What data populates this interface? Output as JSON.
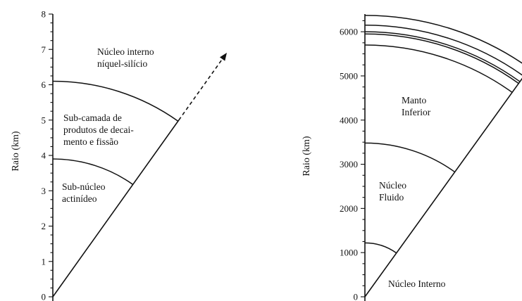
{
  "panels": [
    {
      "id": "left",
      "axis_title": "Raio (km)",
      "ticks": [
        0,
        1,
        2,
        3,
        4,
        5,
        6,
        7,
        8
      ],
      "ylim": [
        0,
        8
      ],
      "layer_boundaries": [
        3.9,
        6.1
      ],
      "arrow": "dashed",
      "regions": [
        {
          "lines": [
            "Sub-núcleo",
            "actinídeo"
          ]
        },
        {
          "lines": [
            "Sub-camada de",
            "produtos de decai-",
            "mento e fissão"
          ]
        },
        {
          "lines": [
            "Núcleo interno",
            "níquel-silício"
          ]
        }
      ]
    },
    {
      "id": "right",
      "axis_title": "Raio (km)",
      "ticks": [
        0,
        1000,
        2000,
        3000,
        4000,
        5000,
        6000
      ],
      "ylim": [
        0,
        6400
      ],
      "layer_boundaries": [
        1220,
        3480,
        5700,
        5950,
        6000,
        6150,
        6371
      ],
      "regions": [
        {
          "lines": [
            "Núcleo Interno"
          ]
        },
        {
          "lines": [
            "Núcleo",
            "Fluido"
          ]
        },
        {
          "lines": [
            "Manto",
            "Inferior"
          ]
        }
      ]
    }
  ]
}
